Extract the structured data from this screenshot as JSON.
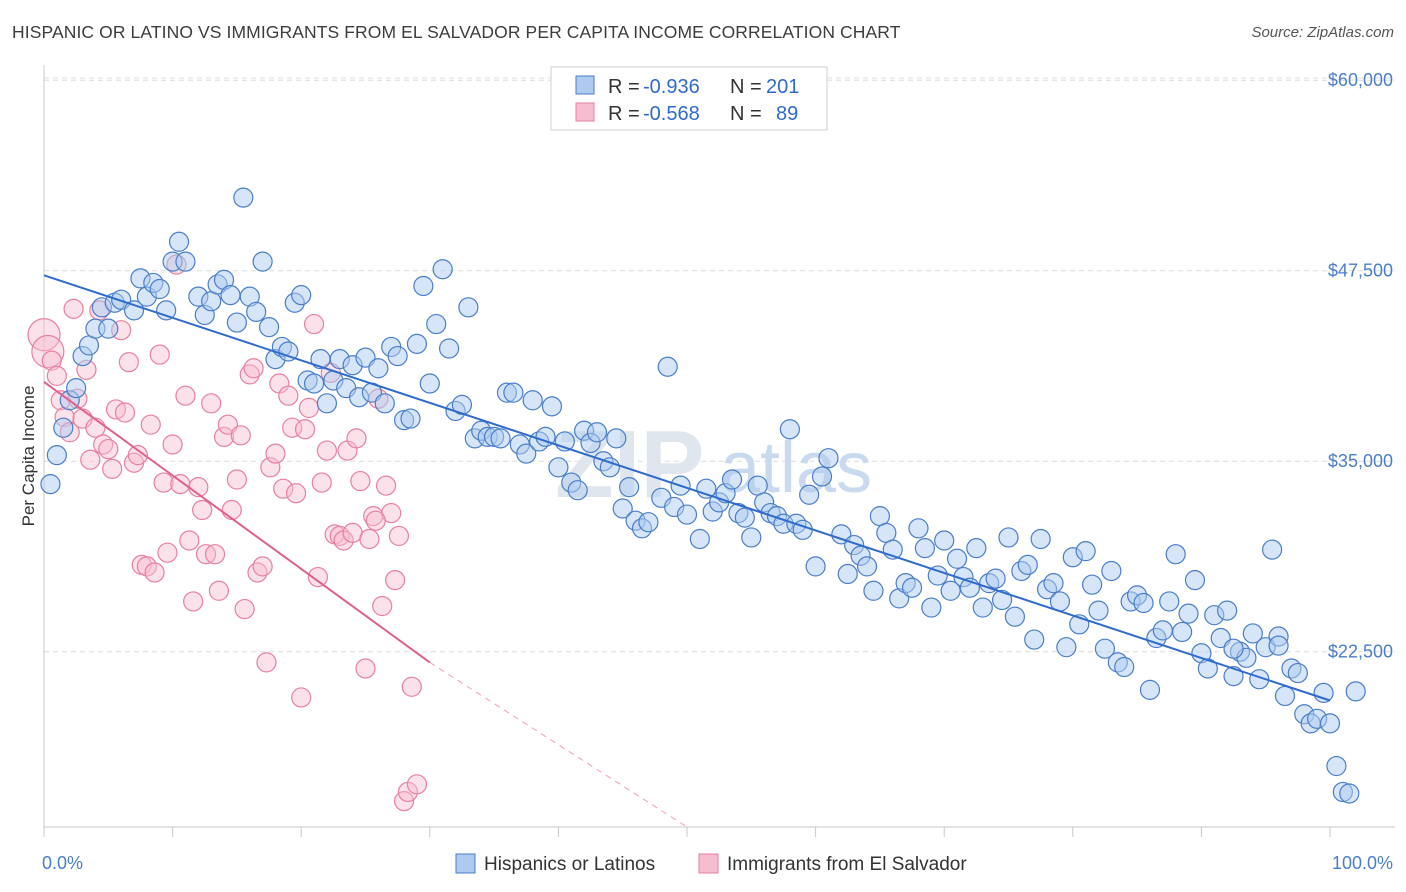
{
  "title": "HISPANIC OR LATINO VS IMMIGRANTS FROM EL SALVADOR PER CAPITA INCOME CORRELATION CHART",
  "source": "Source: ZipAtlas.com",
  "watermark": {
    "zip": "ZIP",
    "atlas": "atlas"
  },
  "colors": {
    "blue": "#4a7ec9",
    "blue_fill": "#aecbef",
    "blue_line": "#2f6bcc",
    "pink_fill": "#f6bcd0",
    "pink_stroke": "#e8809f",
    "pink_line": "#e0608c",
    "grid": "#dcdcdc"
  },
  "legend": {
    "rows": [
      {
        "r_label": "R = ",
        "r_value": "-0.936",
        "n_label": "N = ",
        "n_value": "201"
      },
      {
        "r_label": "R = ",
        "r_value": "-0.568",
        "n_label": "N = ",
        "n_value": "89"
      }
    ]
  },
  "chart_data": {
    "type": "scatter",
    "title": "HISPANIC OR LATINO VS IMMIGRANTS FROM EL SALVADOR PER CAPITA INCOME CORRELATION CHART",
    "xlabel": "",
    "ylabel": "Per Capita Income",
    "xlim": [
      0,
      100
    ],
    "ylim": [
      11000,
      61000
    ],
    "x_tick_labels": [
      "0.0%",
      "100.0%"
    ],
    "y_ticks": [
      22500,
      35000,
      47500,
      60000
    ],
    "y_tick_labels": [
      "$22,500",
      "$35,000",
      "$47,500",
      "$60,000"
    ],
    "grid": true,
    "legend_position": "bottom",
    "series": [
      {
        "name": "Hispanics or Latinos",
        "r": -0.936,
        "n": 201,
        "trend": {
          "x": [
            0,
            100
          ],
          "y": [
            47200,
            19300
          ]
        },
        "points": [
          [
            0.5,
            33500
          ],
          [
            1,
            35400
          ],
          [
            1.5,
            37200
          ],
          [
            2,
            39000
          ],
          [
            2.5,
            39800
          ],
          [
            3,
            41900
          ],
          [
            3.5,
            42600
          ],
          [
            4,
            43700
          ],
          [
            4.5,
            45100
          ],
          [
            5,
            43700
          ],
          [
            5.5,
            45400
          ],
          [
            6,
            45600
          ],
          [
            7,
            44900
          ],
          [
            7.5,
            47000
          ],
          [
            8,
            45800
          ],
          [
            8.5,
            46700
          ],
          [
            9,
            46300
          ],
          [
            9.5,
            44900
          ],
          [
            10,
            48100
          ],
          [
            10.5,
            49400
          ],
          [
            11,
            48100
          ],
          [
            12,
            45800
          ],
          [
            12.5,
            44600
          ],
          [
            13,
            45500
          ],
          [
            13.5,
            46600
          ],
          [
            14,
            46900
          ],
          [
            14.5,
            45900
          ],
          [
            15,
            44100
          ],
          [
            15.5,
            52300
          ],
          [
            16,
            45800
          ],
          [
            16.5,
            44800
          ],
          [
            17,
            48100
          ],
          [
            17.5,
            43800
          ],
          [
            18,
            41700
          ],
          [
            18.5,
            42500
          ],
          [
            19,
            42200
          ],
          [
            19.5,
            45400
          ],
          [
            20,
            45900
          ],
          [
            20.5,
            40300
          ],
          [
            21,
            40100
          ],
          [
            21.5,
            41700
          ],
          [
            22,
            38800
          ],
          [
            22.5,
            40300
          ],
          [
            23,
            41700
          ],
          [
            23.5,
            39800
          ],
          [
            24,
            41300
          ],
          [
            24.5,
            39200
          ],
          [
            25,
            41800
          ],
          [
            25.5,
            39500
          ],
          [
            26,
            41100
          ],
          [
            26.5,
            38800
          ],
          [
            27,
            42500
          ],
          [
            27.5,
            41900
          ],
          [
            28,
            37700
          ],
          [
            28.5,
            37800
          ],
          [
            29,
            42700
          ],
          [
            29.5,
            46500
          ],
          [
            30,
            40100
          ],
          [
            30.5,
            44000
          ],
          [
            31,
            47600
          ],
          [
            31.5,
            42400
          ],
          [
            32,
            38300
          ],
          [
            32.5,
            38700
          ],
          [
            33,
            45100
          ],
          [
            33.5,
            36500
          ],
          [
            34,
            37000
          ],
          [
            34.5,
            36600
          ],
          [
            35,
            36600
          ],
          [
            35.5,
            36500
          ],
          [
            36,
            39500
          ],
          [
            36.5,
            39500
          ],
          [
            37,
            36100
          ],
          [
            37.5,
            35500
          ],
          [
            38,
            39000
          ],
          [
            38.5,
            36300
          ],
          [
            39,
            36600
          ],
          [
            39.5,
            38600
          ],
          [
            40,
            34600
          ],
          [
            40.5,
            36300
          ],
          [
            41,
            33600
          ],
          [
            41.5,
            33100
          ],
          [
            42,
            37000
          ],
          [
            42.5,
            36200
          ],
          [
            43,
            36900
          ],
          [
            43.5,
            35000
          ],
          [
            44,
            34600
          ],
          [
            44.5,
            36500
          ],
          [
            45,
            31900
          ],
          [
            45.5,
            33300
          ],
          [
            46,
            31100
          ],
          [
            46.5,
            30600
          ],
          [
            47,
            31000
          ],
          [
            48,
            32600
          ],
          [
            48.5,
            41200
          ],
          [
            49,
            32000
          ],
          [
            49.5,
            33400
          ],
          [
            50,
            31500
          ],
          [
            51,
            29900
          ],
          [
            51.5,
            33200
          ],
          [
            52,
            31700
          ],
          [
            52.5,
            32300
          ],
          [
            53,
            32900
          ],
          [
            53.5,
            33800
          ],
          [
            54,
            31600
          ],
          [
            54.5,
            31300
          ],
          [
            55,
            30000
          ],
          [
            55.5,
            33400
          ],
          [
            56,
            32300
          ],
          [
            56.5,
            31600
          ],
          [
            57,
            31400
          ],
          [
            57.5,
            30900
          ],
          [
            58,
            37100
          ],
          [
            58.5,
            30900
          ],
          [
            59,
            30500
          ],
          [
            59.5,
            32800
          ],
          [
            60,
            28100
          ],
          [
            60.5,
            34000
          ],
          [
            61,
            35200
          ],
          [
            62,
            30200
          ],
          [
            62.5,
            27600
          ],
          [
            63,
            29500
          ],
          [
            63.5,
            28800
          ],
          [
            64,
            28100
          ],
          [
            64.5,
            26500
          ],
          [
            65,
            31400
          ],
          [
            65.5,
            30300
          ],
          [
            66,
            29200
          ],
          [
            66.5,
            26000
          ],
          [
            67,
            27000
          ],
          [
            67.5,
            26700
          ],
          [
            68,
            30600
          ],
          [
            68.5,
            29300
          ],
          [
            69,
            25400
          ],
          [
            69.5,
            27500
          ],
          [
            70,
            29800
          ],
          [
            70.5,
            26500
          ],
          [
            71,
            28600
          ],
          [
            71.5,
            27400
          ],
          [
            72,
            26700
          ],
          [
            72.5,
            29300
          ],
          [
            73,
            25400
          ],
          [
            73.5,
            27000
          ],
          [
            74,
            27300
          ],
          [
            74.5,
            25900
          ],
          [
            75,
            30000
          ],
          [
            75.5,
            24800
          ],
          [
            76,
            27800
          ],
          [
            76.5,
            28200
          ],
          [
            77,
            23300
          ],
          [
            77.5,
            29900
          ],
          [
            78,
            26600
          ],
          [
            78.5,
            27000
          ],
          [
            79,
            25800
          ],
          [
            79.5,
            22800
          ],
          [
            80,
            28700
          ],
          [
            80.5,
            24300
          ],
          [
            81,
            29100
          ],
          [
            81.5,
            26900
          ],
          [
            82,
            25200
          ],
          [
            82.5,
            22700
          ],
          [
            83,
            27800
          ],
          [
            83.5,
            21800
          ],
          [
            84,
            21500
          ],
          [
            84.5,
            25800
          ],
          [
            85,
            26200
          ],
          [
            85.5,
            25700
          ],
          [
            86,
            20000
          ],
          [
            86.5,
            23400
          ],
          [
            87,
            23900
          ],
          [
            87.5,
            25800
          ],
          [
            88,
            28900
          ],
          [
            88.5,
            23800
          ],
          [
            89,
            25000
          ],
          [
            89.5,
            27200
          ],
          [
            90,
            22400
          ],
          [
            90.5,
            21400
          ],
          [
            91,
            24900
          ],
          [
            91.5,
            23400
          ],
          [
            92,
            25200
          ],
          [
            92.5,
            20900
          ],
          [
            93,
            22500
          ],
          [
            93.5,
            22100
          ],
          [
            94,
            23700
          ],
          [
            94.5,
            20700
          ],
          [
            95,
            22800
          ],
          [
            95.5,
            29200
          ],
          [
            96,
            23500
          ],
          [
            96.5,
            19600
          ],
          [
            97,
            21400
          ],
          [
            97.5,
            21100
          ],
          [
            98,
            18400
          ],
          [
            98.5,
            17800
          ],
          [
            99,
            18100
          ],
          [
            99.5,
            19800
          ],
          [
            100,
            17800
          ],
          [
            100.5,
            15000
          ],
          [
            101,
            13300
          ],
          [
            101.5,
            13200
          ],
          [
            102,
            19900
          ],
          [
            96,
            22900
          ],
          [
            92.5,
            22700
          ]
        ]
      },
      {
        "name": "Immigrants from El Salvador",
        "r": -0.568,
        "n": 89,
        "trend": {
          "x": [
            0,
            30
          ],
          "y": [
            40200,
            21800
          ]
        },
        "trend_dashed": {
          "x": [
            30,
            50
          ],
          "y": [
            21800,
            11000
          ]
        },
        "points": [
          [
            0,
            43300
          ],
          [
            0.3,
            42200
          ],
          [
            0.6,
            41600
          ],
          [
            1,
            40600
          ],
          [
            1.3,
            39000
          ],
          [
            1.6,
            37900
          ],
          [
            2,
            36900
          ],
          [
            2.3,
            45000
          ],
          [
            2.6,
            39100
          ],
          [
            3,
            37800
          ],
          [
            3.3,
            41000
          ],
          [
            3.6,
            35100
          ],
          [
            4,
            37200
          ],
          [
            4.3,
            44900
          ],
          [
            4.6,
            36100
          ],
          [
            5,
            35800
          ],
          [
            5.3,
            34500
          ],
          [
            5.6,
            38400
          ],
          [
            6,
            43600
          ],
          [
            6.3,
            38200
          ],
          [
            6.6,
            41500
          ],
          [
            7,
            34900
          ],
          [
            7.3,
            35400
          ],
          [
            7.6,
            28200
          ],
          [
            8,
            28100
          ],
          [
            8.3,
            37400
          ],
          [
            8.6,
            27700
          ],
          [
            9,
            42000
          ],
          [
            9.3,
            33600
          ],
          [
            9.6,
            29000
          ],
          [
            10,
            36100
          ],
          [
            10.3,
            47900
          ],
          [
            10.6,
            33500
          ],
          [
            11,
            39300
          ],
          [
            11.3,
            29800
          ],
          [
            11.6,
            25800
          ],
          [
            12,
            33300
          ],
          [
            12.3,
            31800
          ],
          [
            12.6,
            28900
          ],
          [
            13,
            38800
          ],
          [
            13.3,
            28900
          ],
          [
            13.6,
            26500
          ],
          [
            14,
            36600
          ],
          [
            14.3,
            37400
          ],
          [
            14.6,
            31800
          ],
          [
            15,
            33800
          ],
          [
            15.3,
            36700
          ],
          [
            15.6,
            25300
          ],
          [
            16,
            40700
          ],
          [
            16.3,
            41100
          ],
          [
            16.6,
            27700
          ],
          [
            17,
            28100
          ],
          [
            17.3,
            21800
          ],
          [
            17.6,
            34600
          ],
          [
            18,
            35500
          ],
          [
            18.3,
            40100
          ],
          [
            18.6,
            33200
          ],
          [
            19,
            39300
          ],
          [
            19.3,
            37200
          ],
          [
            19.6,
            32900
          ],
          [
            20,
            19500
          ],
          [
            20.3,
            37100
          ],
          [
            20.6,
            38500
          ],
          [
            21,
            44000
          ],
          [
            21.3,
            27400
          ],
          [
            21.6,
            33600
          ],
          [
            22,
            35700
          ],
          [
            22.3,
            40800
          ],
          [
            22.6,
            30200
          ],
          [
            23,
            30100
          ],
          [
            23.3,
            29800
          ],
          [
            23.6,
            35700
          ],
          [
            24,
            30300
          ],
          [
            24.3,
            36500
          ],
          [
            24.6,
            33700
          ],
          [
            25,
            21400
          ],
          [
            25.3,
            29900
          ],
          [
            25.6,
            31400
          ],
          [
            26,
            39100
          ],
          [
            26.3,
            25500
          ],
          [
            26.6,
            33400
          ],
          [
            27,
            31600
          ],
          [
            27.3,
            27200
          ],
          [
            27.6,
            30100
          ],
          [
            28,
            12700
          ],
          [
            28.3,
            13300
          ],
          [
            28.6,
            20200
          ],
          [
            29,
            13800
          ],
          [
            25.8,
            31100
          ]
        ]
      }
    ]
  },
  "bottom_legend": [
    "Hispanics or Latinos",
    "Immigrants from El Salvador"
  ]
}
